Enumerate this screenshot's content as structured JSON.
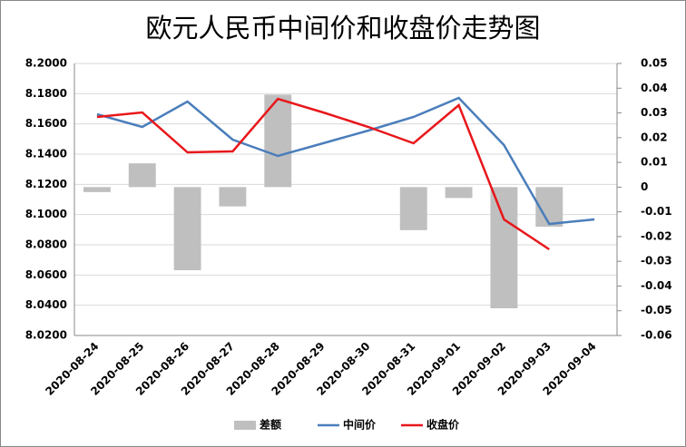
{
  "chart_data": {
    "type": "bar_line",
    "title": "欧元人民币中间价和收盘价走势图",
    "categories": [
      "2020-08-24",
      "2020-08-25",
      "2020-08-26",
      "2020-08-27",
      "2020-08-28",
      "2020-08-29",
      "2020-08-30",
      "2020-08-31",
      "2020-09-01",
      "2020-09-02",
      "2020-09-03",
      "2020-09-04"
    ],
    "series": [
      {
        "name": "差额",
        "type": "bar",
        "axis": "y2",
        "color": "#bfbfbf",
        "values": [
          -0.002,
          0.0096,
          -0.0336,
          -0.0078,
          0.0374,
          null,
          null,
          -0.0174,
          -0.0044,
          -0.049,
          -0.016,
          null
        ]
      },
      {
        "name": "中间价",
        "type": "line",
        "color": "#4a7ebb",
        "values": [
          8.1664,
          8.158,
          8.1748,
          8.1496,
          8.1388,
          8.1472,
          8.1556,
          8.1646,
          8.1772,
          8.146,
          8.0938,
          8.0968
        ]
      },
      {
        "name": "收盘价",
        "type": "line",
        "color": "#e8171b",
        "values": [
          8.1646,
          8.1676,
          8.1412,
          8.1418,
          8.1766,
          8.1676,
          8.158,
          8.1472,
          8.1724,
          8.0968,
          8.077,
          null
        ]
      }
    ],
    "ylim": [
      8.02,
      8.2
    ],
    "yticks": [
      {
        "value": 8.02,
        "label": "8.0200"
      },
      {
        "value": 8.04,
        "label": "8.0400"
      },
      {
        "value": 8.06,
        "label": "8.0600"
      },
      {
        "value": 8.08,
        "label": "8.0800"
      },
      {
        "value": 8.1,
        "label": "8.1000"
      },
      {
        "value": 8.12,
        "label": "8.1200"
      },
      {
        "value": 8.14,
        "label": "8.1400"
      },
      {
        "value": 8.16,
        "label": "8.1600"
      },
      {
        "value": 8.18,
        "label": "8.1800"
      },
      {
        "value": 8.2,
        "label": "8.2000"
      }
    ],
    "y2lim": [
      -0.06,
      0.05
    ],
    "y2ticks": [
      -0.06,
      -0.05,
      -0.04,
      -0.03,
      -0.02,
      -0.01,
      0,
      0.01,
      0.02,
      0.03,
      0.04,
      0.05
    ],
    "grid": true
  }
}
